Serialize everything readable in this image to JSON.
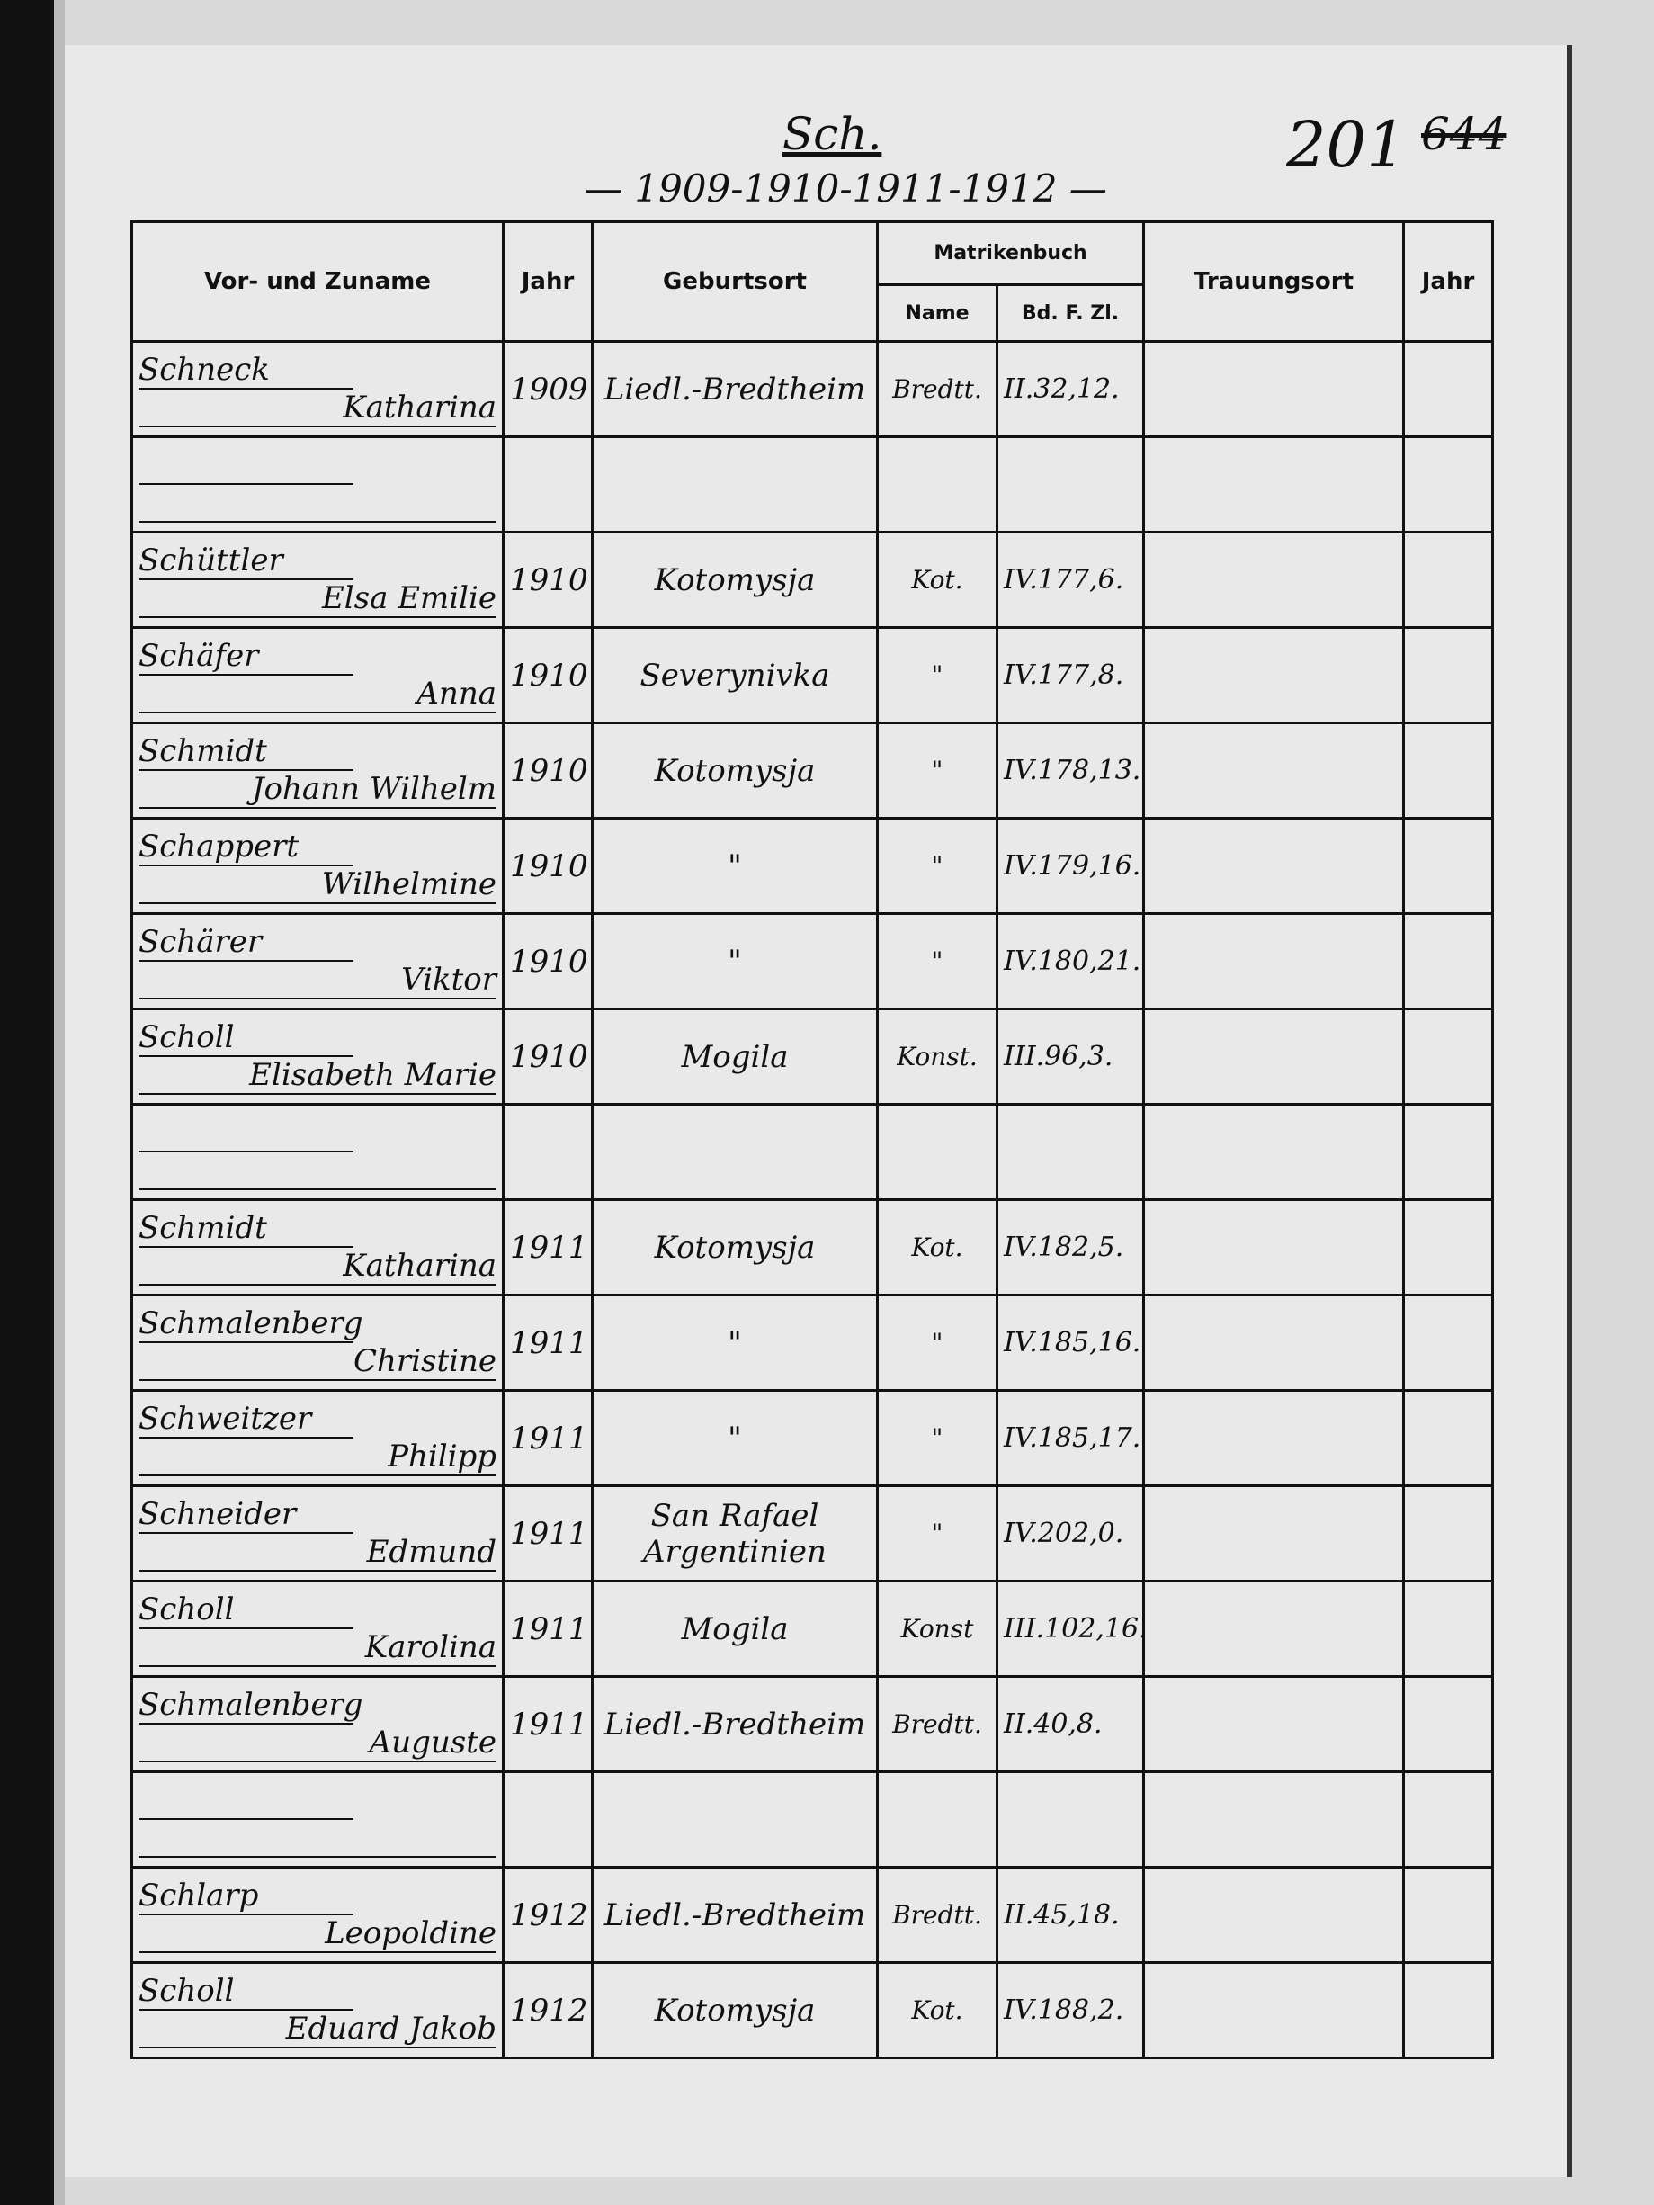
{
  "header": {
    "letter": "Sch.",
    "years": "— 1909-1910-1911-1912 —",
    "page_number": "201",
    "old_page_number": "644"
  },
  "columns": {
    "name": "Vor- und Zuname",
    "year": "Jahr",
    "birthplace": "Geburtsort",
    "register": "Matrikenbuch",
    "register_name": "Name",
    "register_ref": "Bd. F. Zl.",
    "marriage_place": "Trauungsort",
    "marriage_year": "Jahr"
  },
  "rows": [
    {
      "surname": "Schneck",
      "given": "Katharina",
      "year": "1909",
      "place": "Liedl.-Bredtheim",
      "reg": "Bredtt.",
      "ref": "II.32,12."
    },
    {
      "surname": "",
      "given": "",
      "year": "",
      "place": "",
      "reg": "",
      "ref": ""
    },
    {
      "surname": "Schüttler",
      "given": "Elsa Emilie",
      "year": "1910",
      "place": "Kotomysja",
      "reg": "Kot.",
      "ref": "IV.177,6."
    },
    {
      "surname": "Schäfer",
      "given": "Anna",
      "year": "1910",
      "place": "Severynivka",
      "reg": "\"",
      "ref": "IV.177,8."
    },
    {
      "surname": "Schmidt",
      "given": "Johann Wilhelm",
      "year": "1910",
      "place": "Kotomysja",
      "reg": "\"",
      "ref": "IV.178,13."
    },
    {
      "surname": "Schappert",
      "given": "Wilhelmine",
      "year": "1910",
      "place": "\"",
      "reg": "\"",
      "ref": "IV.179,16."
    },
    {
      "surname": "Schärer",
      "given": "Viktor",
      "year": "1910",
      "place": "\"",
      "reg": "\"",
      "ref": "IV.180,21."
    },
    {
      "surname": "Scholl",
      "given": "Elisabeth Marie",
      "year": "1910",
      "place": "Mogila",
      "reg": "Konst.",
      "ref": "III.96,3."
    },
    {
      "surname": "",
      "given": "",
      "year": "",
      "place": "",
      "reg": "",
      "ref": ""
    },
    {
      "surname": "Schmidt",
      "given": "Katharina",
      "year": "1911",
      "place": "Kotomysja",
      "reg": "Kot.",
      "ref": "IV.182,5."
    },
    {
      "surname": "Schmalenberg",
      "given": "Christine",
      "year": "1911",
      "place": "\"",
      "reg": "\"",
      "ref": "IV.185,16."
    },
    {
      "surname": "Schweitzer",
      "given": "Philipp",
      "year": "1911",
      "place": "\"",
      "reg": "\"",
      "ref": "IV.185,17."
    },
    {
      "surname": "Schneider",
      "given": "Edmund",
      "year": "1911",
      "place": "San Rafael Argentinien",
      "reg": "\"",
      "ref": "IV.202,0."
    },
    {
      "surname": "Scholl",
      "given": "Karolina",
      "year": "1911",
      "place": "Mogila",
      "reg": "Konst",
      "ref": "III.102,16."
    },
    {
      "surname": "Schmalenberg",
      "given": "Auguste",
      "year": "1911",
      "place": "Liedl.-Bredtheim",
      "reg": "Bredtt.",
      "ref": "II.40,8."
    },
    {
      "surname": "",
      "given": "",
      "year": "",
      "place": "",
      "reg": "",
      "ref": ""
    },
    {
      "surname": "Schlarp",
      "given": "Leopoldine",
      "year": "1912",
      "place": "Liedl.-Bredtheim",
      "reg": "Bredtt.",
      "ref": "II.45,18."
    },
    {
      "surname": "Scholl",
      "given": "Eduard Jakob",
      "year": "1912",
      "place": "Kotomysja",
      "reg": "Kot.",
      "ref": "IV.188,2."
    }
  ]
}
